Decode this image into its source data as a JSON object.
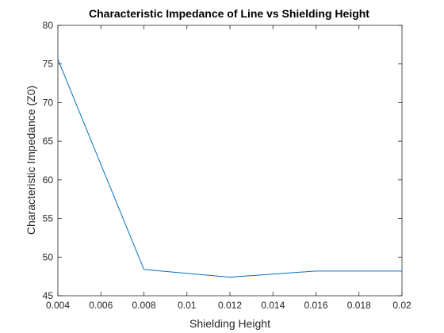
{
  "chart_data": {
    "type": "line",
    "title": "Characteristic Impedance of Line vs Shielding Height",
    "xlabel": "Shielding Height",
    "ylabel": "Characteristic Impedance (Z0)",
    "xlim": [
      0.004,
      0.02
    ],
    "ylim": [
      45,
      80
    ],
    "xticks": [
      0.004,
      0.006,
      0.008,
      0.01,
      0.012,
      0.014,
      0.016,
      0.018,
      0.02
    ],
    "xtick_labels": [
      "0.004",
      "0.006",
      "0.008",
      "0.01",
      "0.012",
      "0.014",
      "0.016",
      "0.018",
      "0.02"
    ],
    "yticks": [
      45,
      50,
      55,
      60,
      65,
      70,
      75,
      80
    ],
    "ytick_labels": [
      "45",
      "50",
      "55",
      "60",
      "65",
      "70",
      "75",
      "80"
    ],
    "grid": false,
    "box": true,
    "series": [
      {
        "color": "#0072bd",
        "x": [
          0.004,
          0.008,
          0.012,
          0.016,
          0.02
        ],
        "y": [
          75.6,
          48.4,
          47.4,
          48.2,
          48.2
        ]
      }
    ]
  }
}
